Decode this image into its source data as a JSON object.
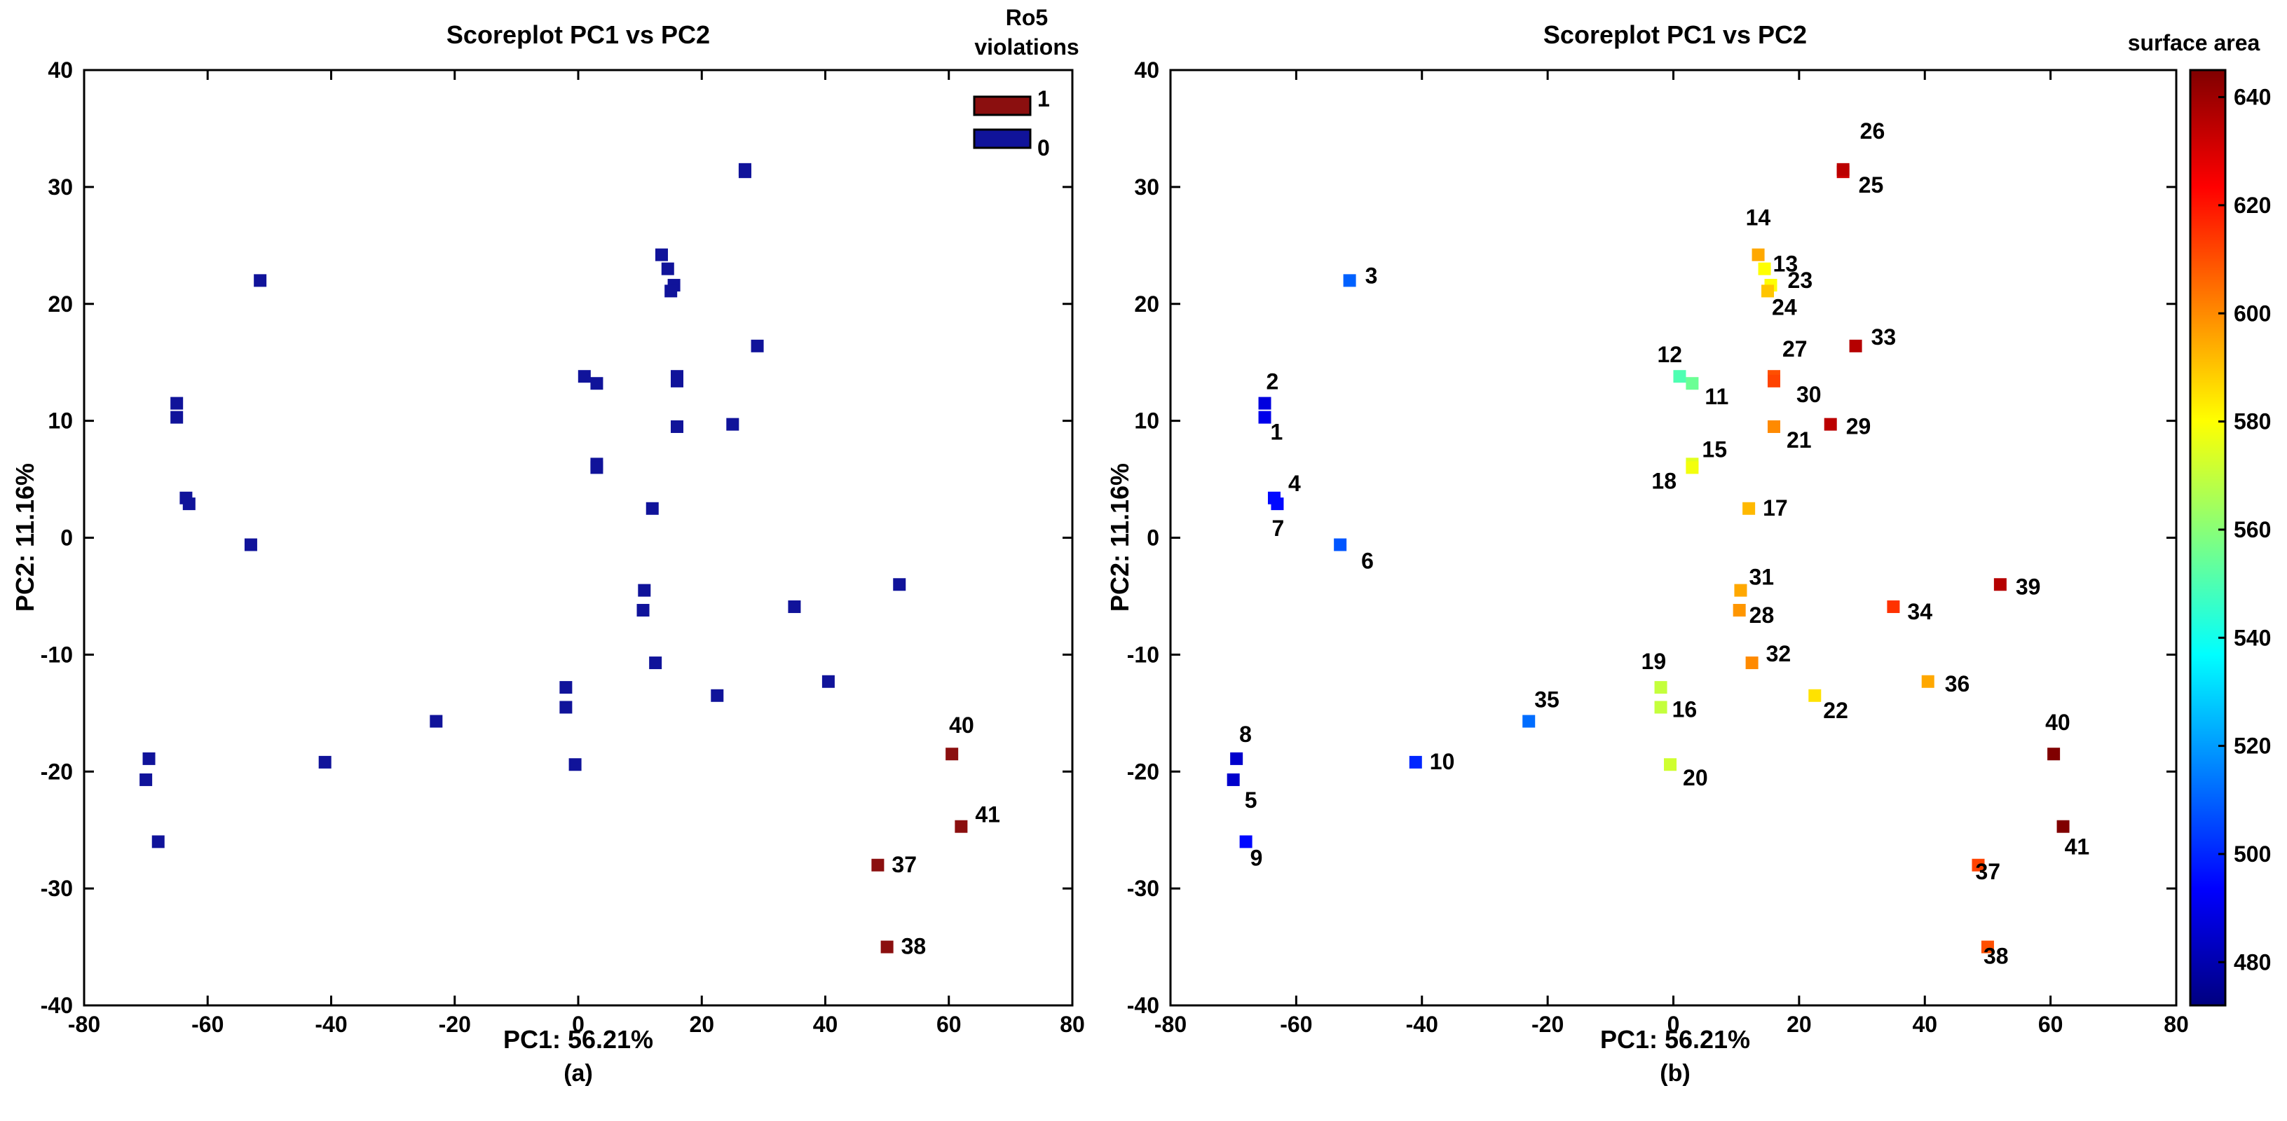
{
  "figure": {
    "captions": [
      "(a)",
      "(b)"
    ]
  },
  "chart_data": [
    {
      "type": "scatter",
      "title": "Scoreplot PC1 vs PC2",
      "xlabel": "PC1: 56.21%",
      "ylabel": "PC2: 11.16%",
      "xlim": [
        -80,
        80
      ],
      "ylim": [
        -40,
        40
      ],
      "xticks": [
        -80,
        -60,
        -40,
        -20,
        0,
        20,
        40,
        60,
        80
      ],
      "yticks": [
        -40,
        -30,
        -20,
        -10,
        0,
        10,
        20,
        30,
        40
      ],
      "legend": {
        "title_lines": [
          "Ro5",
          "violations"
        ],
        "placement": "top-right",
        "entries": [
          {
            "label": "1",
            "color": "#8b0f0f"
          },
          {
            "label": "0",
            "color": "#10139a"
          }
        ]
      },
      "colors": {
        "violation": "#8b0f0f",
        "none": "#10139a"
      },
      "points": [
        {
          "x": -65,
          "y": 11.5,
          "v": 0
        },
        {
          "x": -65,
          "y": 10.3,
          "v": 0
        },
        {
          "x": -51.5,
          "y": 22,
          "v": 0
        },
        {
          "x": -63.5,
          "y": 3.4,
          "v": 0
        },
        {
          "x": -70,
          "y": -20.7,
          "v": 0
        },
        {
          "x": -53,
          "y": -0.6,
          "v": 0
        },
        {
          "x": -63,
          "y": 2.9,
          "v": 0
        },
        {
          "x": -69.5,
          "y": -18.9,
          "v": 0
        },
        {
          "x": -68,
          "y": -26,
          "v": 0
        },
        {
          "x": -41,
          "y": -19.2,
          "v": 0
        },
        {
          "x": 3,
          "y": 13.2,
          "v": 0
        },
        {
          "x": 1,
          "y": 13.8,
          "v": 0
        },
        {
          "x": 14.5,
          "y": 23,
          "v": 0
        },
        {
          "x": 13.5,
          "y": 24.2,
          "v": 0
        },
        {
          "x": 3,
          "y": 6.3,
          "v": 0
        },
        {
          "x": -2,
          "y": -14.5,
          "v": 0
        },
        {
          "x": 12,
          "y": 2.5,
          "v": 0
        },
        {
          "x": 3,
          "y": 6,
          "v": 0
        },
        {
          "x": -2,
          "y": -12.8,
          "v": 0
        },
        {
          "x": -0.5,
          "y": -19.4,
          "v": 0
        },
        {
          "x": 16,
          "y": 9.5,
          "v": 0
        },
        {
          "x": 22.5,
          "y": -13.5,
          "v": 0
        },
        {
          "x": 15.5,
          "y": 21.6,
          "v": 0
        },
        {
          "x": 15,
          "y": 21.1,
          "v": 0
        },
        {
          "x": 27,
          "y": 31.5,
          "v": 0
        },
        {
          "x": 27,
          "y": 31.3,
          "v": 0
        },
        {
          "x": 16,
          "y": 13.8,
          "v": 0
        },
        {
          "x": 10.5,
          "y": -6.2,
          "v": 0
        },
        {
          "x": 25,
          "y": 9.7,
          "v": 0
        },
        {
          "x": 16,
          "y": 13.4,
          "v": 0
        },
        {
          "x": 10.7,
          "y": -4.5,
          "v": 0
        },
        {
          "x": 12.5,
          "y": -10.7,
          "v": 0
        },
        {
          "x": 29,
          "y": 16.4,
          "v": 0
        },
        {
          "x": 35,
          "y": -5.9,
          "v": 0
        },
        {
          "x": -23,
          "y": -15.7,
          "v": 0
        },
        {
          "x": 40.5,
          "y": -12.3,
          "v": 0
        },
        {
          "x": 52,
          "y": -4,
          "v": 0
        },
        {
          "x": 48.5,
          "y": -28,
          "v": 1,
          "label": "37"
        },
        {
          "x": 50,
          "y": -35,
          "v": 1,
          "label": "38"
        },
        {
          "x": 60.5,
          "y": -18.5,
          "v": 1,
          "label": "40"
        },
        {
          "x": 62,
          "y": -24.7,
          "v": 1,
          "label": "41"
        }
      ]
    },
    {
      "type": "scatter",
      "title": "Scoreplot PC1 vs PC2",
      "xlabel": "PC1: 56.21%",
      "ylabel": "PC2: 11.16%",
      "xlim": [
        -80,
        80
      ],
      "ylim": [
        -40,
        40
      ],
      "xticks": [
        -80,
        -60,
        -40,
        -20,
        0,
        20,
        40,
        60,
        80
      ],
      "yticks": [
        -40,
        -30,
        -20,
        -10,
        0,
        10,
        20,
        30,
        40
      ],
      "colorbar": {
        "title": "surface area",
        "range": [
          472,
          645
        ],
        "ticks": [
          480,
          500,
          520,
          540,
          560,
          580,
          600,
          620,
          640
        ],
        "stops": [
          "#000080",
          "#0000ff",
          "#0080ff",
          "#00ffff",
          "#80ff80",
          "#ffff00",
          "#ff8000",
          "#ff0000",
          "#800000"
        ]
      },
      "points": [
        {
          "id": "1",
          "x": -65,
          "y": 10.3,
          "c": 490
        },
        {
          "id": "2",
          "x": -65,
          "y": 11.5,
          "c": 488
        },
        {
          "id": "3",
          "x": -51.5,
          "y": 22,
          "c": 510
        },
        {
          "id": "4",
          "x": -63.5,
          "y": 3.4,
          "c": 495
        },
        {
          "id": "5",
          "x": -70,
          "y": -20.7,
          "c": 485
        },
        {
          "id": "6",
          "x": -53,
          "y": -0.6,
          "c": 508
        },
        {
          "id": "7",
          "x": -63,
          "y": 2.9,
          "c": 495
        },
        {
          "id": "8",
          "x": -69.5,
          "y": -18.9,
          "c": 485
        },
        {
          "id": "9",
          "x": -68,
          "y": -26,
          "c": 495
        },
        {
          "id": "10",
          "x": -41,
          "y": -19.2,
          "c": 500
        },
        {
          "id": "11",
          "x": 3,
          "y": 13.2,
          "c": 555
        },
        {
          "id": "12",
          "x": 1,
          "y": 13.8,
          "c": 550
        },
        {
          "id": "13",
          "x": 14.5,
          "y": 23,
          "c": 580
        },
        {
          "id": "14",
          "x": 13.5,
          "y": 24.2,
          "c": 595
        },
        {
          "id": "15",
          "x": 3,
          "y": 6.3,
          "c": 575
        },
        {
          "id": "16",
          "x": -2,
          "y": -14.5,
          "c": 570
        },
        {
          "id": "17",
          "x": 12,
          "y": 2.5,
          "c": 592
        },
        {
          "id": "18",
          "x": 3,
          "y": 6,
          "c": 578
        },
        {
          "id": "19",
          "x": -2,
          "y": -12.8,
          "c": 570
        },
        {
          "id": "20",
          "x": -0.5,
          "y": -19.4,
          "c": 572
        },
        {
          "id": "21",
          "x": 16,
          "y": 9.5,
          "c": 600
        },
        {
          "id": "22",
          "x": 22.5,
          "y": -13.5,
          "c": 585
        },
        {
          "id": "23",
          "x": 15.5,
          "y": 21.6,
          "c": 580
        },
        {
          "id": "24",
          "x": 15,
          "y": 21.1,
          "c": 590
        },
        {
          "id": "25",
          "x": 27,
          "y": 31.3,
          "c": 632
        },
        {
          "id": "26",
          "x": 27,
          "y": 31.5,
          "c": 635
        },
        {
          "id": "27",
          "x": 16,
          "y": 13.8,
          "c": 610
        },
        {
          "id": "28",
          "x": 10.5,
          "y": -6.2,
          "c": 598
        },
        {
          "id": "29",
          "x": 25,
          "y": 9.7,
          "c": 635
        },
        {
          "id": "30",
          "x": 16,
          "y": 13.4,
          "c": 612
        },
        {
          "id": "31",
          "x": 10.7,
          "y": -4.5,
          "c": 595
        },
        {
          "id": "32",
          "x": 12.5,
          "y": -10.7,
          "c": 600
        },
        {
          "id": "33",
          "x": 29,
          "y": 16.4,
          "c": 636
        },
        {
          "id": "34",
          "x": 35,
          "y": -5.9,
          "c": 615
        },
        {
          "id": "35",
          "x": -23,
          "y": -15.7,
          "c": 512
        },
        {
          "id": "36",
          "x": 40.5,
          "y": -12.3,
          "c": 595
        },
        {
          "id": "37",
          "x": 48.5,
          "y": -28,
          "c": 612
        },
        {
          "id": "38",
          "x": 50,
          "y": -35,
          "c": 610
        },
        {
          "id": "39",
          "x": 52,
          "y": -4,
          "c": 636
        },
        {
          "id": "40",
          "x": 60.5,
          "y": -18.5,
          "c": 645
        },
        {
          "id": "41",
          "x": 62,
          "y": -24.7,
          "c": 645
        }
      ]
    }
  ]
}
